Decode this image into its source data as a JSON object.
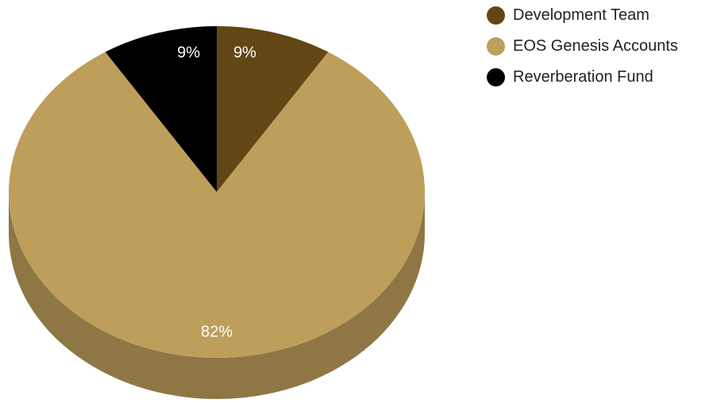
{
  "chart_data": {
    "type": "pie",
    "style": "3d",
    "title": "",
    "slices": [
      {
        "label": "Development Team",
        "value": 9,
        "display": "9%",
        "color": "#624613",
        "side_color": "#3f2d0c"
      },
      {
        "label": "EOS Genesis Accounts",
        "value": 82,
        "display": "82%",
        "color": "#bd9e5b",
        "side_color": "#8f7745"
      },
      {
        "label": "Reverberation Fund",
        "value": 9,
        "display": "9%",
        "color": "#000000",
        "side_color": "#000000"
      }
    ],
    "legend": {
      "position": "top-right",
      "items": [
        "Development Team",
        "EOS Genesis Accounts",
        "Reverberation Fund"
      ]
    }
  }
}
